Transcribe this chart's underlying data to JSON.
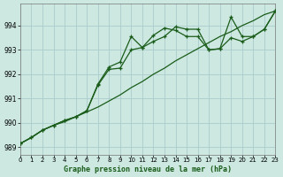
{
  "title": "Graphe pression niveau de la mer (hPa)",
  "background_color": "#cce8e0",
  "grid_color": "#aacccc",
  "line_color": "#1a5c1a",
  "xlim": [
    0,
    23
  ],
  "ylim": [
    988.7,
    994.9
  ],
  "yticks": [
    989,
    990,
    991,
    992,
    993,
    994
  ],
  "xticks": [
    0,
    1,
    2,
    3,
    4,
    5,
    6,
    7,
    8,
    9,
    10,
    11,
    12,
    13,
    14,
    15,
    16,
    17,
    18,
    19,
    20,
    21,
    22,
    23
  ],
  "line1_x": [
    0,
    1,
    2,
    3,
    4,
    5,
    6,
    7,
    8,
    9,
    10,
    11,
    12,
    13,
    14,
    15,
    16,
    17,
    18,
    19,
    20,
    21,
    22,
    23
  ],
  "line1_y": [
    989.15,
    989.4,
    989.7,
    989.9,
    990.05,
    990.25,
    990.45,
    990.65,
    990.9,
    991.15,
    991.45,
    991.7,
    992.0,
    992.25,
    992.55,
    992.8,
    993.05,
    993.3,
    993.55,
    993.75,
    994.0,
    994.2,
    994.45,
    994.6
  ],
  "line2_x": [
    0,
    1,
    2,
    3,
    4,
    5,
    6,
    7,
    8,
    9,
    10,
    11,
    12,
    13,
    14,
    15,
    16,
    17,
    18,
    19,
    20,
    21,
    22,
    23
  ],
  "line2_y": [
    989.15,
    989.4,
    989.7,
    989.9,
    990.1,
    990.25,
    990.5,
    991.55,
    992.2,
    992.25,
    993.0,
    993.1,
    993.35,
    993.55,
    993.95,
    993.85,
    993.85,
    993.0,
    993.05,
    994.35,
    993.55,
    993.55,
    993.85,
    994.6
  ],
  "line3_x": [
    0,
    1,
    2,
    3,
    4,
    5,
    6,
    7,
    8,
    9,
    10,
    11,
    12,
    13,
    14,
    15,
    16,
    17,
    18,
    19,
    20,
    21,
    22,
    23
  ],
  "line3_y": [
    989.15,
    989.4,
    989.7,
    989.9,
    990.1,
    990.25,
    990.5,
    991.6,
    992.3,
    992.5,
    993.55,
    993.1,
    993.6,
    993.9,
    993.8,
    993.55,
    993.55,
    993.0,
    993.05,
    993.5,
    993.35,
    993.55,
    993.85,
    994.6
  ]
}
